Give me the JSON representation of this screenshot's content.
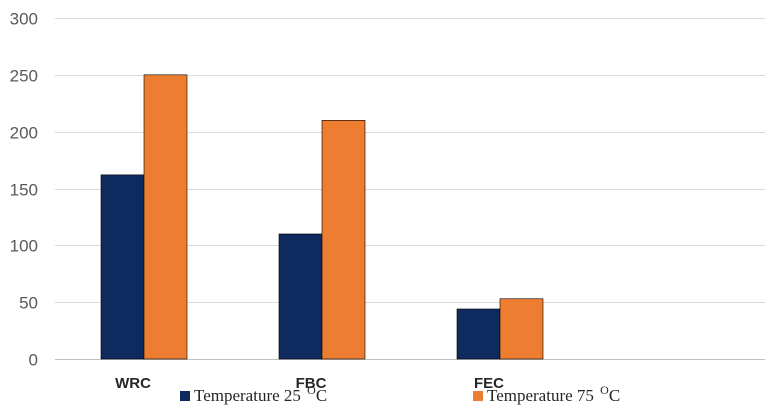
{
  "chart_data": {
    "type": "bar",
    "title": "",
    "xlabel": "",
    "ylabel": "",
    "categories": [
      "WRC",
      "FBC",
      "FEC"
    ],
    "series": [
      {
        "name": "Temperature 25 ",
        "superscript": "O",
        "unit": "C",
        "color": "#0e2a5e",
        "values": [
          162,
          110,
          44
        ]
      },
      {
        "name": "Temperature 75 ",
        "superscript": "O",
        "unit": "C",
        "color": "#ed7d31",
        "values": [
          250,
          210,
          53
        ]
      }
    ],
    "ylim": [
      0,
      300
    ],
    "yticks": [
      0,
      50,
      100,
      150,
      200,
      250,
      300
    ],
    "grid": true,
    "legend_position": "bottom"
  }
}
